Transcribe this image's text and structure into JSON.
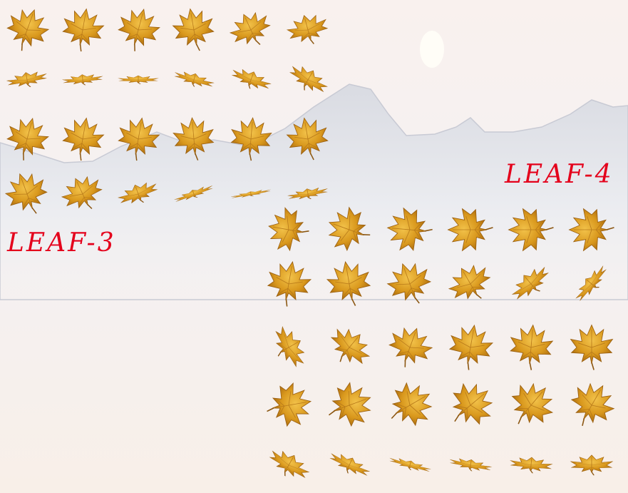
{
  "labels": {
    "leaf_3": "LEAF-3",
    "leaf_4": "LEAF-4"
  }
}
